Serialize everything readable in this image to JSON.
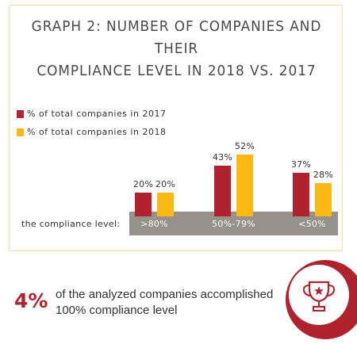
{
  "chart_data": {
    "type": "bar",
    "title": "GRAPH 2: NUMBER OF COMPANIES AND THEIR COMPLIANCE LEVEL IN 2018 VS. 2017",
    "title_lines": [
      "GRAPH 2: NUMBER OF COMPANIES AND THEIR",
      "COMPLIANCE LEVEL IN 2018 VS. 2017"
    ],
    "xlabel": "the compliance level:",
    "categories": [
      ">80%",
      "50%-79%",
      "<50%"
    ],
    "series": [
      {
        "name": "% of total companies in 2017",
        "color": "#b0232e",
        "values": [
          20,
          43,
          37
        ],
        "labels": [
          "20%",
          "43%",
          "37%"
        ]
      },
      {
        "name": "% of total companies in 2018",
        "color": "#fdb813",
        "values": [
          20,
          52,
          28
        ],
        "labels": [
          "20%",
          "52%",
          "28%"
        ]
      }
    ],
    "legend_position": "top-left",
    "ylim": [
      0,
      100
    ],
    "grid": false
  },
  "footer": {
    "percent": "4%",
    "text": "of the analyzed companies accomplished 100% compliance level",
    "icon": "trophy-icon",
    "accent": "#b0232e"
  }
}
